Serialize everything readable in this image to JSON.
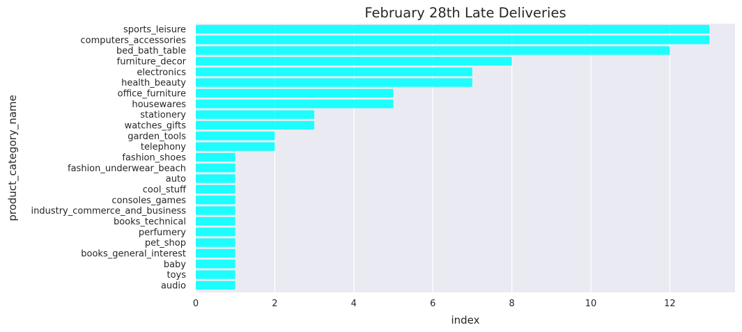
{
  "chart_data": {
    "type": "bar",
    "orientation": "horizontal",
    "title": "February 28th Late Deliveries",
    "xlabel": "index",
    "ylabel": "product_category_name",
    "xlim": [
      0,
      13.65
    ],
    "xticks": [
      0,
      2,
      4,
      6,
      8,
      10,
      12
    ],
    "grid": true,
    "bar_color": "#00ffff",
    "background_color": "#eaeaf2",
    "categories": [
      "sports_leisure",
      "computers_accessories",
      "bed_bath_table",
      "furniture_decor",
      "electronics",
      "health_beauty",
      "office_furniture",
      "housewares",
      "stationery",
      "watches_gifts",
      "garden_tools",
      "telephony",
      "fashion_shoes",
      "fashion_underwear_beach",
      "auto",
      "cool_stuff",
      "consoles_games",
      "industry_commerce_and_business",
      "books_technical",
      "perfumery",
      "pet_shop",
      "books_general_interest",
      "baby",
      "toys",
      "audio"
    ],
    "values": [
      13,
      13,
      12,
      8,
      7,
      7,
      5,
      5,
      3,
      3,
      2,
      2,
      1,
      1,
      1,
      1,
      1,
      1,
      1,
      1,
      1,
      1,
      1,
      1,
      1
    ]
  }
}
